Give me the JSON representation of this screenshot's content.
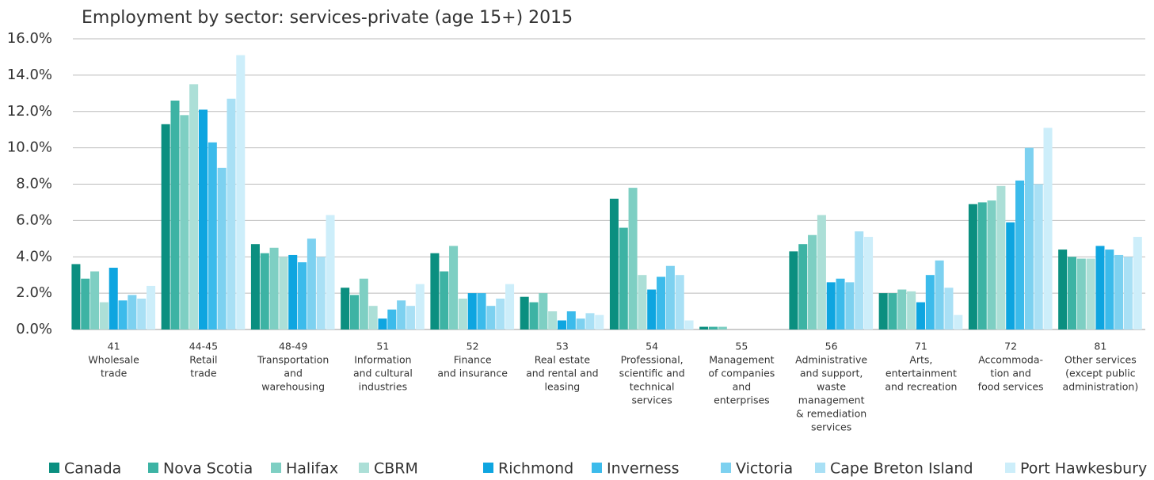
{
  "chart_data": {
    "type": "bar",
    "title": "Employment by sector: services-private (age 15+) 2015",
    "categories": [
      [
        "41",
        "Wholesale",
        "trade"
      ],
      [
        "44-45",
        "Retail",
        "trade"
      ],
      [
        "48-49",
        "Transportation",
        "and",
        "warehousing"
      ],
      [
        "51",
        "Information",
        "and cultural",
        "industries"
      ],
      [
        "52",
        "Finance",
        "and insurance"
      ],
      [
        "53",
        "Real estate",
        "and rental and",
        "leasing"
      ],
      [
        "54",
        "Professional,",
        "scientific and",
        "technical",
        "services"
      ],
      [
        "55",
        "Management",
        "of companies",
        "and",
        "enterprises"
      ],
      [
        "56",
        "Administrative",
        "and support,",
        "waste",
        "management",
        "& remediation",
        "services"
      ],
      [
        "71",
        "Arts,",
        "entertainment",
        "and recreation"
      ],
      [
        "72",
        "Accommoda-",
        "tion and",
        "food services"
      ],
      [
        "81",
        "Other services",
        "(except public",
        "administration)"
      ]
    ],
    "series": [
      {
        "name": "Canada",
        "color": "#0b8f80",
        "values": [
          3.6,
          11.3,
          4.7,
          2.3,
          4.2,
          1.8,
          7.2,
          0.15,
          4.3,
          2.0,
          6.9,
          4.4
        ]
      },
      {
        "name": "Nova Scotia",
        "color": "#3db3a4",
        "values": [
          2.8,
          12.6,
          4.2,
          1.9,
          3.2,
          1.5,
          5.6,
          0.15,
          4.7,
          2.0,
          7.0,
          4.0
        ]
      },
      {
        "name": "Halifax",
        "color": "#7ecfc3",
        "values": [
          3.2,
          11.8,
          4.5,
          2.8,
          4.6,
          2.0,
          7.8,
          0.15,
          5.2,
          2.2,
          7.1,
          3.9
        ]
      },
      {
        "name": "CBRM",
        "color": "#acdfd7",
        "values": [
          1.5,
          13.5,
          4.0,
          1.3,
          1.7,
          1.0,
          3.0,
          0,
          6.3,
          2.1,
          7.9,
          3.9
        ]
      },
      {
        "name": "Richmond",
        "color": "#0ea5e0",
        "values": [
          3.4,
          12.1,
          4.1,
          0.6,
          2.0,
          0.5,
          2.2,
          0,
          2.6,
          1.5,
          5.9,
          4.6
        ]
      },
      {
        "name": "Inverness",
        "color": "#3cbbeb",
        "values": [
          1.6,
          10.3,
          3.7,
          1.1,
          2.0,
          1.0,
          2.9,
          0,
          2.8,
          3.0,
          8.2,
          4.4
        ]
      },
      {
        "name": "Victoria",
        "color": "#7dd1f0",
        "values": [
          1.9,
          8.9,
          5.0,
          1.6,
          1.3,
          0.6,
          3.5,
          0,
          2.6,
          3.8,
          10.0,
          4.1
        ]
      },
      {
        "name": "Cape Breton Island",
        "color": "#a9e0f5",
        "values": [
          1.7,
          12.7,
          4.0,
          1.3,
          1.7,
          0.9,
          3.0,
          0,
          5.4,
          2.3,
          8.0,
          4.0
        ]
      },
      {
        "name": "Port Hawkesbury",
        "color": "#cdeefa",
        "values": [
          2.4,
          15.1,
          6.3,
          2.5,
          2.5,
          0.8,
          0.5,
          0,
          5.1,
          0.8,
          11.1,
          5.1
        ]
      }
    ],
    "ylim": [
      0,
      16
    ],
    "yticks": [
      {
        "value": 0,
        "label": "0.0%"
      },
      {
        "value": 2,
        "label": "2.0%"
      },
      {
        "value": 4,
        "label": "4.0%"
      },
      {
        "value": 6,
        "label": "6.0%"
      },
      {
        "value": 8,
        "label": "8.0%"
      },
      {
        "value": 10,
        "label": "10.0%"
      },
      {
        "value": 12,
        "label": "12.0%"
      },
      {
        "value": 14,
        "label": "14.0%"
      },
      {
        "value": 16,
        "label": "16.0%"
      }
    ],
    "grid": true,
    "legend": "bottom"
  }
}
